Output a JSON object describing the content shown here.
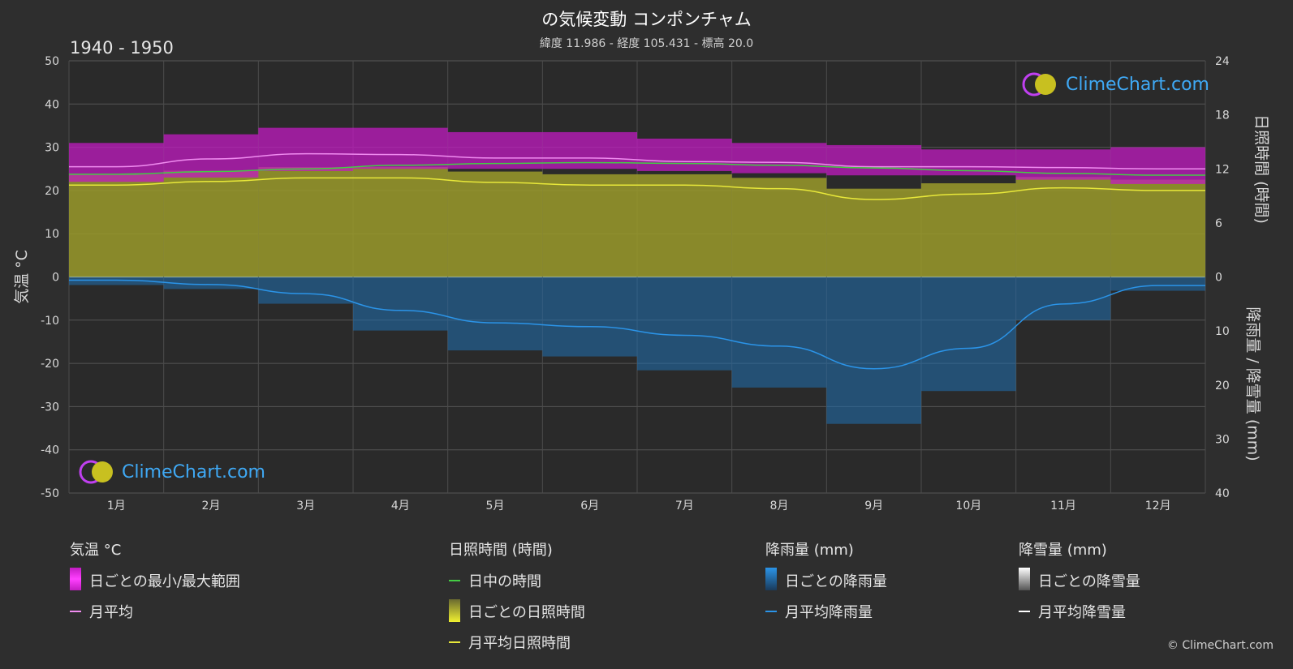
{
  "title": "の気候変動 コンポンチャム",
  "subtitle": "緯度 11.986 - 経度 105.431 - 標高 20.0",
  "period": "1940 - 1950",
  "copyright": "© ClimeChart.com",
  "logo_text": "ClimeChart.com",
  "axes": {
    "left_title": "気温 °C",
    "right_top_title": "日照時間 (時間)",
    "right_bottom_title": "降雨量 / 降雪量 (mm)",
    "left_ticks": [
      "50",
      "40",
      "30",
      "20",
      "10",
      "0",
      "-10",
      "-20",
      "-30",
      "-40",
      "-50"
    ],
    "right_top_ticks": [
      "24",
      "18",
      "12",
      "6",
      "0"
    ],
    "right_bottom_ticks": [
      "10",
      "20",
      "30",
      "40"
    ]
  },
  "legend": {
    "temp": {
      "heading": "気温 °C",
      "range": "日ごとの最小/最大範囲",
      "mean": "月平均"
    },
    "sun": {
      "heading": "日照時間 (時間)",
      "daylight": "日中の時間",
      "daily": "日ごとの日照時間",
      "mean": "月平均日照時間"
    },
    "rain": {
      "heading": "降雨量 (mm)",
      "daily": "日ごとの降雨量",
      "mean": "月平均降雨量"
    },
    "snow": {
      "heading": "降雪量 (mm)",
      "daily": "日ごとの降雪量",
      "mean": "月平均降雪量"
    }
  },
  "colors": {
    "background": "#2e2e2e",
    "temp_range": "#c21bc2",
    "temp_mean": "#f08cf0",
    "daylight": "#44cc44",
    "sunshine_fill": "#9a9a2a",
    "sunshine_mean": "#e8e83a",
    "rain": "#1f6fb0",
    "rain_mean": "#2b94e8",
    "snow": "#ffffff"
  },
  "chart_data": {
    "type": "line",
    "categories": [
      "1月",
      "2月",
      "3月",
      "4月",
      "5月",
      "6月",
      "7月",
      "8月",
      "9月",
      "10月",
      "11月",
      "12月"
    ],
    "ylim_temperature": [
      -50,
      50
    ],
    "ylim_sunshine_hours": [
      0,
      24
    ],
    "ylim_precip_mm": [
      0,
      40
    ],
    "series": [
      {
        "name": "月平均",
        "axis": "temperature",
        "values": [
          25.5,
          27.3,
          28.5,
          28.3,
          27.5,
          27.5,
          26.7,
          26.5,
          25.5,
          25.5,
          25.3,
          25.0
        ]
      },
      {
        "name": "日ごとの最小/最大範囲",
        "axis": "temperature",
        "min": [
          22.0,
          23.0,
          24.5,
          25.0,
          25.0,
          25.0,
          24.5,
          24.0,
          23.5,
          23.5,
          22.5,
          21.5
        ],
        "max": [
          31.0,
          33.0,
          34.5,
          34.5,
          33.5,
          33.5,
          32.0,
          31.0,
          30.5,
          29.5,
          29.5,
          30.0
        ]
      },
      {
        "name": "日中の時間",
        "axis": "sunshine",
        "values": [
          11.4,
          11.7,
          12.0,
          12.4,
          12.6,
          12.7,
          12.6,
          12.4,
          12.1,
          11.8,
          11.5,
          11.3
        ]
      },
      {
        "name": "月平均日照時間",
        "axis": "sunshine",
        "values": [
          10.2,
          10.6,
          11.0,
          11.0,
          10.5,
          10.2,
          10.2,
          9.8,
          8.6,
          9.2,
          9.9,
          9.6
        ]
      },
      {
        "name": "月平均降雨量",
        "axis": "precip",
        "values": [
          0.6,
          1.4,
          3.1,
          6.2,
          8.5,
          9.2,
          10.8,
          12.8,
          17.0,
          13.2,
          5.0,
          1.6
        ]
      },
      {
        "name": "月平均降雪量",
        "axis": "precip",
        "values": [
          0,
          0,
          0,
          0,
          0,
          0,
          0,
          0,
          0,
          0,
          0,
          0
        ]
      }
    ]
  }
}
